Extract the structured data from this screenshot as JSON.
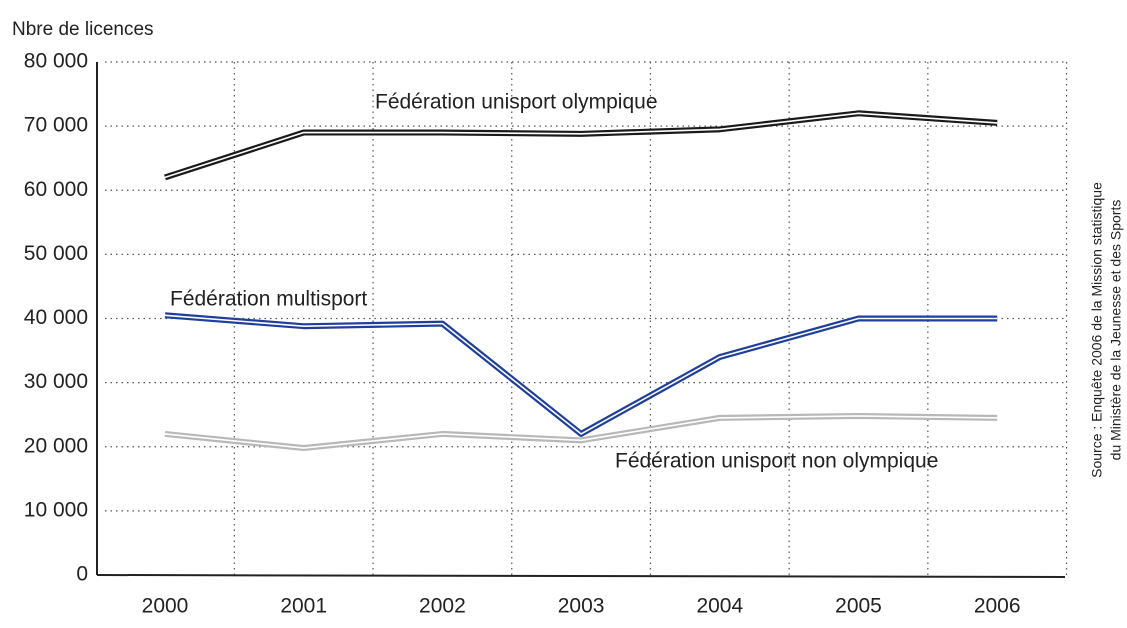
{
  "chart_data": {
    "type": "line",
    "y_label": "Nbre de licences",
    "source": [
      "Source : Enquête 2006 de la Mission statistique",
      "du Ministère de la Jeunesse et des Sports"
    ],
    "categories": [
      "2000",
      "2001",
      "2002",
      "2003",
      "2004",
      "2005",
      "2006"
    ],
    "series": [
      {
        "name": "Fédération unisport olympique",
        "color": "#1a1a1a",
        "values": [
          62000,
          69000,
          69000,
          68800,
          69500,
          72000,
          70500
        ]
      },
      {
        "name": "Fédération multisport",
        "color": "#1f3f9a",
        "values": [
          40500,
          38800,
          39200,
          22000,
          34000,
          40000,
          40000
        ]
      },
      {
        "name": "Fédération unisport non olympique",
        "color": "#b8b8b8",
        "values": [
          22000,
          19800,
          22000,
          21000,
          24500,
          24800,
          24500
        ]
      }
    ],
    "ylim": [
      0,
      80000
    ],
    "yticks": [
      0,
      {
        "value": 10000,
        "label": "10 000"
      },
      {
        "value": 20000,
        "label": "20 000"
      },
      {
        "value": 30000,
        "label": "30 000"
      },
      {
        "value": 40000,
        "label": "40 000"
      },
      {
        "value": 50000,
        "label": "50 000"
      },
      {
        "value": 60000,
        "label": "60 000"
      },
      {
        "value": 70000,
        "label": "70 000"
      },
      {
        "value": 80000,
        "label": "80 000"
      }
    ],
    "grid": true
  }
}
